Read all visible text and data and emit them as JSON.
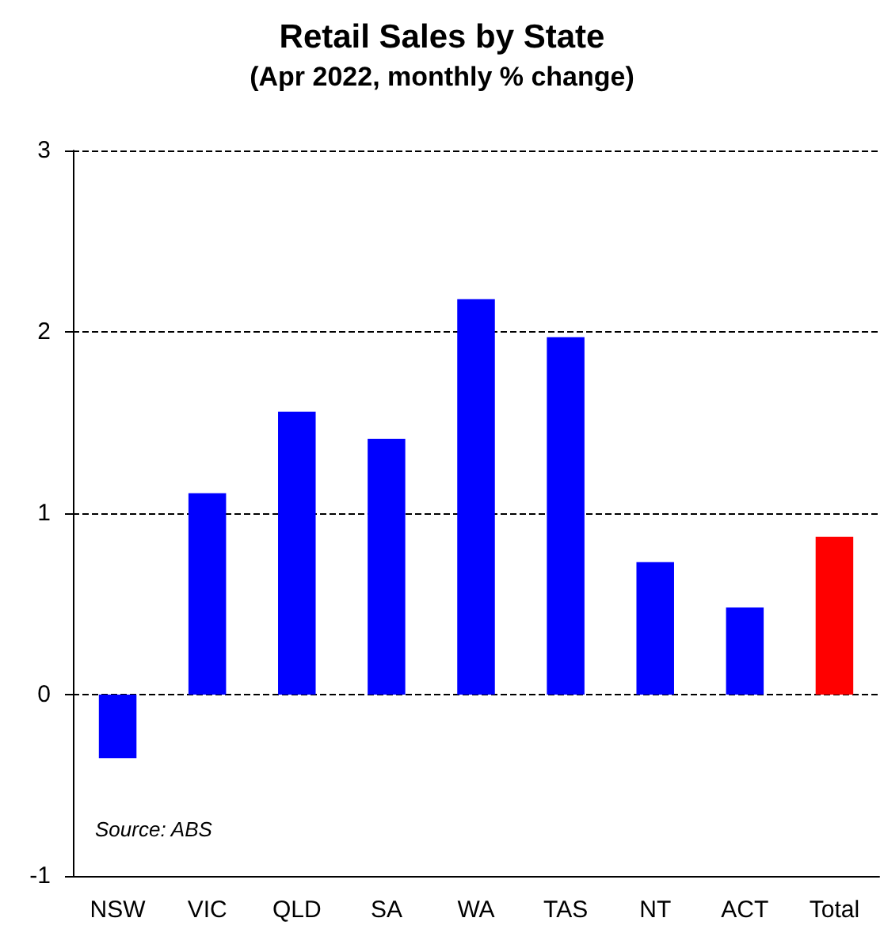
{
  "chart_data": {
    "type": "bar",
    "title": "Retail Sales by State",
    "subtitle": "(Apr 2022, monthly % change)",
    "categories": [
      "NSW",
      "VIC",
      "QLD",
      "SA",
      "WA",
      "TAS",
      "NT",
      "ACT",
      "Total"
    ],
    "values": [
      -0.35,
      1.11,
      1.56,
      1.41,
      2.18,
      1.97,
      0.73,
      0.48,
      0.87
    ],
    "colors": [
      "#0000ff",
      "#0000ff",
      "#0000ff",
      "#0000ff",
      "#0000ff",
      "#0000ff",
      "#0000ff",
      "#0000ff",
      "#ff0000"
    ],
    "ylim": [
      -1,
      3
    ],
    "yticks": [
      -1,
      0,
      1,
      2,
      3
    ],
    "grid": "y",
    "annotations": [
      "Source: ABS"
    ]
  }
}
